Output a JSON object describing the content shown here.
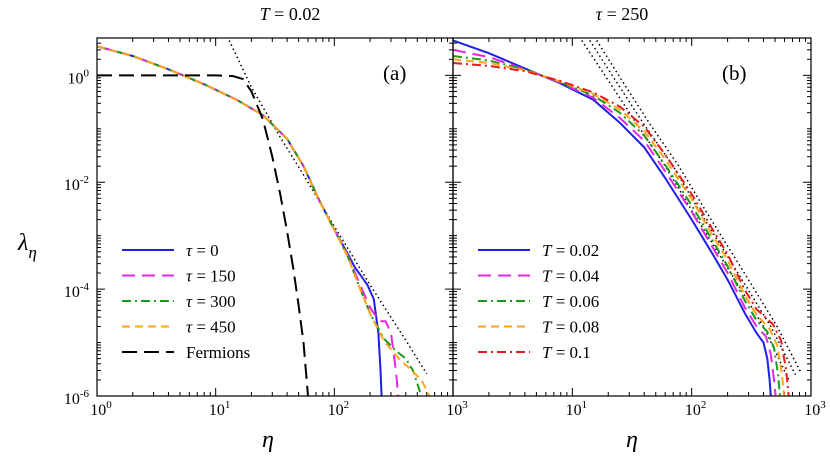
{
  "chart_data": [
    {
      "type": "line",
      "panel": "(a)",
      "title": "T = 0.02",
      "title_var": "T",
      "title_value": "0.02",
      "xlabel": "η",
      "ylabel": "λ_η",
      "xscale": "log",
      "yscale": "log",
      "xlim": [
        1,
        1000
      ],
      "ylim": [
        1e-06,
        5
      ],
      "x_ticks": [
        {
          "base": "10",
          "exp": "0"
        },
        {
          "base": "10",
          "exp": "1"
        },
        {
          "base": "10",
          "exp": "2"
        },
        {
          "base": "10",
          "exp": "3"
        }
      ],
      "y_ticks": [
        {
          "base": "10",
          "exp": "0"
        },
        {
          "base": "10",
          "exp": "-2"
        },
        {
          "base": "10",
          "exp": "-4"
        },
        {
          "base": "10",
          "exp": "-6"
        }
      ],
      "legend_position": "bottom-left",
      "reference_line": {
        "style": "dotted",
        "color": "#000000",
        "points": [
          [
            13,
            4.5
          ],
          [
            20,
            0.6
          ],
          [
            35,
            0.07
          ],
          [
            60,
            0.01
          ],
          [
            100,
            0.0015
          ],
          [
            200,
            0.00012
          ],
          [
            400,
            1.1e-05
          ],
          [
            600,
            2.6e-06
          ]
        ]
      },
      "series": [
        {
          "name": "τ = 0",
          "var": "τ",
          "value": "0",
          "color": "#1f1fe6",
          "dash": "solid",
          "points": [
            [
              1,
              3.5
            ],
            [
              2,
              2.3
            ],
            [
              4,
              1.3
            ],
            [
              8,
              0.68
            ],
            [
              15,
              0.35
            ],
            [
              25,
              0.18
            ],
            [
              40,
              0.065
            ],
            [
              55,
              0.02
            ],
            [
              75,
              0.0045
            ],
            [
              100,
              0.0013
            ],
            [
              130,
              0.00045
            ],
            [
              150,
              0.00025
            ],
            [
              170,
              0.00017
            ],
            [
              190,
              0.00012
            ],
            [
              215,
              6.5e-05
            ],
            [
              235,
              1.5e-05
            ],
            [
              245,
              3e-06
            ],
            [
              250,
              1e-06
            ]
          ]
        },
        {
          "name": "τ = 150",
          "var": "τ",
          "value": "150",
          "color": "#e626e6",
          "dash": "long-dash",
          "points": [
            [
              1,
              3.5
            ],
            [
              2,
              2.3
            ],
            [
              4,
              1.3
            ],
            [
              8,
              0.68
            ],
            [
              15,
              0.35
            ],
            [
              25,
              0.18
            ],
            [
              40,
              0.065
            ],
            [
              55,
              0.02
            ],
            [
              75,
              0.0045
            ],
            [
              100,
              0.0013
            ],
            [
              130,
              0.00042
            ],
            [
              160,
              0.00014
            ],
            [
              200,
              4.5e-05
            ],
            [
              240,
              2.5e-05
            ],
            [
              270,
              2.5e-05
            ],
            [
              300,
              1.5e-05
            ],
            [
              330,
              3e-06
            ],
            [
              345,
              1e-06
            ]
          ]
        },
        {
          "name": "τ = 300",
          "var": "τ",
          "value": "300",
          "color": "#1a9a1a",
          "dash": "dash-dot",
          "points": [
            [
              1,
              3.5
            ],
            [
              2,
              2.3
            ],
            [
              4,
              1.3
            ],
            [
              8,
              0.68
            ],
            [
              15,
              0.35
            ],
            [
              25,
              0.18
            ],
            [
              40,
              0.065
            ],
            [
              55,
              0.02
            ],
            [
              75,
              0.0045
            ],
            [
              100,
              0.0013
            ],
            [
              130,
              0.0004
            ],
            [
              160,
              0.00012
            ],
            [
              200,
              3.5e-05
            ],
            [
              260,
              1.2e-05
            ],
            [
              330,
              7e-06
            ],
            [
              400,
              5e-06
            ],
            [
              460,
              3e-06
            ],
            [
              510,
              1.5e-06
            ],
            [
              540,
              1e-06
            ]
          ]
        },
        {
          "name": "τ = 450",
          "var": "τ",
          "value": "450",
          "color": "#ffa31a",
          "dash": "dashed",
          "points": [
            [
              1,
              3.5
            ],
            [
              2,
              2.3
            ],
            [
              4,
              1.3
            ],
            [
              8,
              0.68
            ],
            [
              15,
              0.35
            ],
            [
              25,
              0.18
            ],
            [
              40,
              0.065
            ],
            [
              55,
              0.02
            ],
            [
              75,
              0.0045
            ],
            [
              100,
              0.0013
            ],
            [
              130,
              0.0004
            ],
            [
              160,
              0.00012
            ],
            [
              200,
              3.5e-05
            ],
            [
              260,
              1.1e-05
            ],
            [
              350,
              5e-06
            ],
            [
              450,
              3e-06
            ],
            [
              540,
              2e-06
            ],
            [
              600,
              1.3e-06
            ],
            [
              630,
              1e-06
            ]
          ]
        },
        {
          "name": "Fermions",
          "var": "",
          "value": "Fermions",
          "color": "#000000",
          "dash": "long-dash-black",
          "points": [
            [
              1,
              1.0
            ],
            [
              5,
              1.0
            ],
            [
              10,
              1.0
            ],
            [
              14,
              0.97
            ],
            [
              17,
              0.85
            ],
            [
              20,
              0.5
            ],
            [
              25,
              0.15
            ],
            [
              30,
              0.03
            ],
            [
              35,
              0.006
            ],
            [
              40,
              0.0012
            ],
            [
              45,
              0.00025
            ],
            [
              50,
              5e-05
            ],
            [
              55,
              1e-05
            ],
            [
              60,
              1e-06
            ]
          ]
        }
      ]
    },
    {
      "type": "line",
      "panel": "(b)",
      "title": "τ = 250",
      "title_var": "τ",
      "title_value": "250",
      "xlabel": "η",
      "ylabel": "",
      "xscale": "log",
      "yscale": "log",
      "xlim": [
        1,
        1000
      ],
      "ylim": [
        1e-06,
        5
      ],
      "x_ticks": [
        {
          "base": "10",
          "exp": "1"
        },
        {
          "base": "10",
          "exp": "2"
        },
        {
          "base": "10",
          "exp": "3"
        }
      ],
      "y_ticks": [],
      "legend_position": "bottom-left",
      "reference_lines": [
        {
          "style": "dotted",
          "color": "#000000",
          "points": [
            [
              12,
              4.5
            ],
            [
              20,
              0.8
            ],
            [
              35,
              0.12
            ],
            [
              60,
              0.02
            ],
            [
              100,
              0.003
            ],
            [
              200,
              0.00025
            ],
            [
              400,
              2e-05
            ],
            [
              650,
              2e-06
            ]
          ]
        },
        {
          "style": "dotted",
          "color": "#000000",
          "points": [
            [
              14,
              4.5
            ],
            [
              23,
              0.8
            ],
            [
              40,
              0.12
            ],
            [
              70,
              0.02
            ],
            [
              115,
              0.003
            ],
            [
              230,
              0.00025
            ],
            [
              460,
              2e-05
            ],
            [
              740,
              2.5e-06
            ]
          ]
        },
        {
          "style": "dotted",
          "color": "#000000",
          "points": [
            [
              16,
              4.5
            ],
            [
              26,
              0.8
            ],
            [
              45,
              0.12
            ],
            [
              78,
              0.02
            ],
            [
              130,
              0.003
            ],
            [
              260,
              0.00025
            ],
            [
              520,
              2e-05
            ],
            [
              820,
              2.8e-06
            ]
          ]
        }
      ],
      "series": [
        {
          "name": "T = 0.02",
          "var": "T",
          "value": "0.02",
          "color": "#1f1fe6",
          "dash": "solid",
          "points": [
            [
              1,
              4.5
            ],
            [
              2,
              2.6
            ],
            [
              4,
              1.35
            ],
            [
              8,
              0.7
            ],
            [
              15,
              0.35
            ],
            [
              25,
              0.13
            ],
            [
              40,
              0.045
            ],
            [
              60,
              0.012
            ],
            [
              100,
              0.002
            ],
            [
              150,
              0.00045
            ],
            [
              200,
              0.00015
            ],
            [
              280,
              3.5e-05
            ],
            [
              350,
              1.5e-05
            ],
            [
              400,
              1e-05
            ],
            [
              430,
              5e-06
            ],
            [
              450,
              2e-06
            ],
            [
              460,
              1e-06
            ]
          ]
        },
        {
          "name": "T = 0.04",
          "var": "T",
          "value": "0.04",
          "color": "#e626e6",
          "dash": "long-dash",
          "points": [
            [
              1,
              3.0
            ],
            [
              2,
              2.2
            ],
            [
              4,
              1.3
            ],
            [
              8,
              0.72
            ],
            [
              15,
              0.38
            ],
            [
              25,
              0.16
            ],
            [
              40,
              0.06
            ],
            [
              60,
              0.016
            ],
            [
              100,
              0.0028
            ],
            [
              150,
              0.0006
            ],
            [
              200,
              0.0002
            ],
            [
              280,
              4.5e-05
            ],
            [
              350,
              2e-05
            ],
            [
              420,
              1.3e-05
            ],
            [
              460,
              6e-06
            ],
            [
              490,
              2e-06
            ],
            [
              505,
              1e-06
            ]
          ]
        },
        {
          "name": "T = 0.06",
          "var": "T",
          "value": "0.06",
          "color": "#1a9a1a",
          "dash": "dash-dot",
          "points": [
            [
              1,
              2.3
            ],
            [
              2,
              1.9
            ],
            [
              4,
              1.3
            ],
            [
              8,
              0.74
            ],
            [
              15,
              0.42
            ],
            [
              25,
              0.2
            ],
            [
              40,
              0.075
            ],
            [
              60,
              0.021
            ],
            [
              100,
              0.0037
            ],
            [
              150,
              0.0008
            ],
            [
              200,
              0.00027
            ],
            [
              280,
              6e-05
            ],
            [
              350,
              2.6e-05
            ],
            [
              430,
              1.6e-05
            ],
            [
              490,
              8e-06
            ],
            [
              530,
              2.5e-06
            ],
            [
              550,
              1e-06
            ]
          ]
        },
        {
          "name": "T = 0.08",
          "var": "T",
          "value": "0.08",
          "color": "#ffa31a",
          "dash": "dashed",
          "points": [
            [
              1,
              2.0
            ],
            [
              2,
              1.7
            ],
            [
              4,
              1.25
            ],
            [
              8,
              0.76
            ],
            [
              15,
              0.45
            ],
            [
              25,
              0.23
            ],
            [
              40,
              0.09
            ],
            [
              60,
              0.027
            ],
            [
              100,
              0.0048
            ],
            [
              150,
              0.001
            ],
            [
              200,
              0.00035
            ],
            [
              280,
              7.5e-05
            ],
            [
              350,
              3.3e-05
            ],
            [
              450,
              1.8e-05
            ],
            [
              520,
              9e-06
            ],
            [
              570,
              2.5e-06
            ],
            [
              595,
              1e-06
            ]
          ]
        },
        {
          "name": "T = 0.1",
          "var": "T",
          "value": "0.1",
          "color": "#e61a1a",
          "dash": "dash-dot",
          "points": [
            [
              1,
              1.7
            ],
            [
              2,
              1.5
            ],
            [
              4,
              1.2
            ],
            [
              8,
              0.78
            ],
            [
              15,
              0.48
            ],
            [
              25,
              0.26
            ],
            [
              40,
              0.11
            ],
            [
              60,
              0.033
            ],
            [
              100,
              0.006
            ],
            [
              150,
              0.0013
            ],
            [
              200,
              0.00045
            ],
            [
              280,
              9.5e-05
            ],
            [
              350,
              4.2e-05
            ],
            [
              480,
              2.2e-05
            ],
            [
              560,
              1.1e-05
            ],
            [
              620,
              3e-06
            ],
            [
              650,
              1e-06
            ]
          ]
        }
      ]
    }
  ]
}
